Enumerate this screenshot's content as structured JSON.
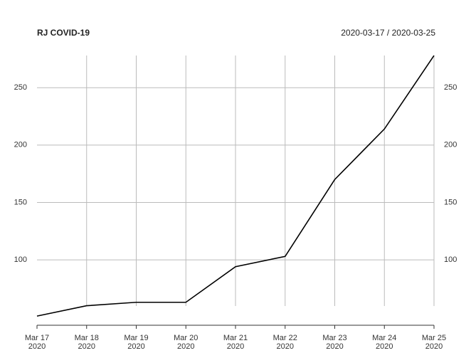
{
  "chart_data": {
    "type": "line",
    "title": "RJ COVID-19",
    "subtitle": "2020-03-17 / 2020-03-25",
    "categories": [
      [
        "Mar 17",
        "2020"
      ],
      [
        "Mar 18",
        "2020"
      ],
      [
        "Mar 19",
        "2020"
      ],
      [
        "Mar 20",
        "2020"
      ],
      [
        "Mar 21",
        "2020"
      ],
      [
        "Mar 22",
        "2020"
      ],
      [
        "Mar 23",
        "2020"
      ],
      [
        "Mar 24",
        "2020"
      ],
      [
        "Mar 25",
        "2020"
      ]
    ],
    "series": [
      {
        "name": "RJ",
        "color": "#000000",
        "values": [
          51,
          60,
          63,
          63,
          94,
          103,
          170,
          214,
          278
        ]
      }
    ],
    "ylim": [
      43,
      283
    ],
    "yticks": [
      100,
      150,
      200,
      250
    ],
    "grid": true
  }
}
